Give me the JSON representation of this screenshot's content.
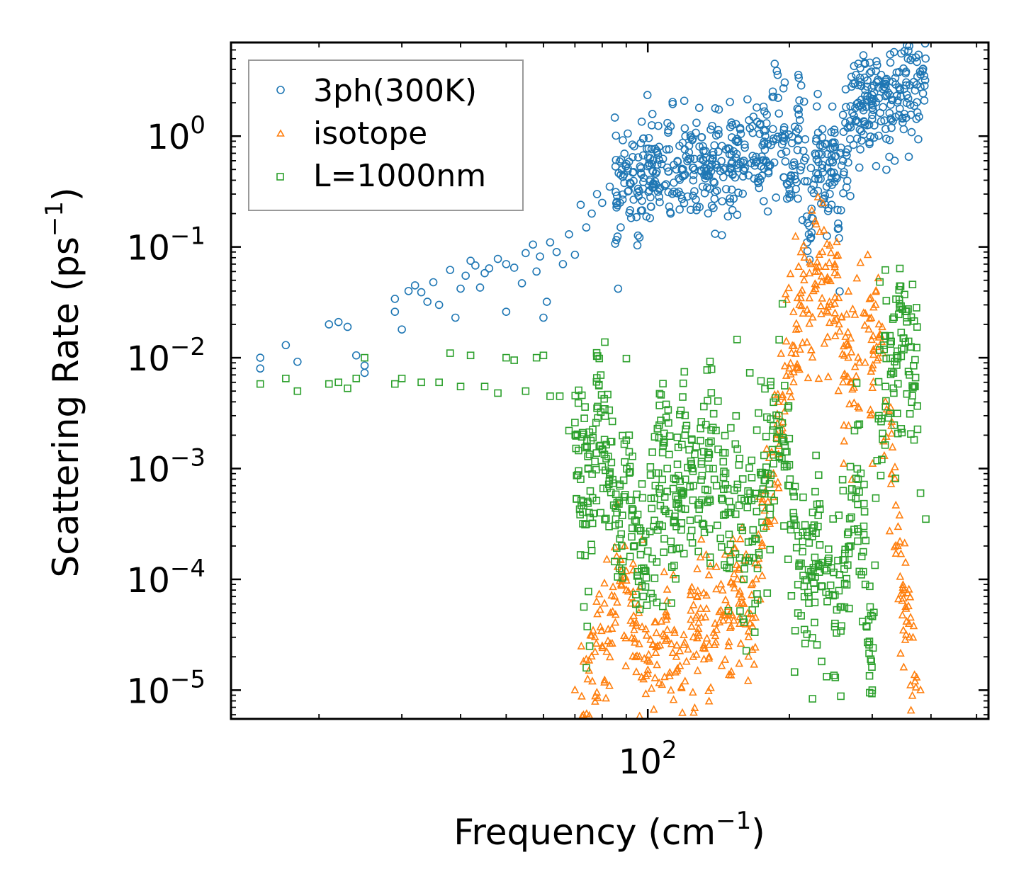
{
  "chart_data": {
    "type": "scatter",
    "title": "",
    "xscale": "log",
    "yscale": "log",
    "xlabel": {
      "base": "Frequency (cm",
      "sup": "−1",
      "tail": ")"
    },
    "ylabel": {
      "base": "Scattering Rate (ps",
      "sup": "−1",
      "tail": ")"
    },
    "xlim": [
      13,
      530
    ],
    "ylim": [
      5.5e-06,
      7
    ],
    "x_ticks": [
      {
        "value": 100,
        "base": "10",
        "exp": "2"
      }
    ],
    "y_ticks": [
      {
        "value": 1,
        "base": "10",
        "exp": "0"
      },
      {
        "value": 0.1,
        "base": "10",
        "exp": "−1"
      },
      {
        "value": 0.01,
        "base": "10",
        "exp": "−2"
      },
      {
        "value": 0.001,
        "base": "10",
        "exp": "−3"
      },
      {
        "value": 0.0001,
        "base": "10",
        "exp": "−4"
      },
      {
        "value": 1e-05,
        "base": "10",
        "exp": "−5"
      }
    ],
    "legend_position": "top-left",
    "series": [
      {
        "name": "3ph(300K)",
        "marker": "circle",
        "color": "#1f77b4",
        "points": [
          [
            15,
            0.01
          ],
          [
            15,
            0.008
          ],
          [
            17,
            0.013
          ],
          [
            18,
            0.0092
          ],
          [
            21,
            0.02
          ],
          [
            22,
            0.021
          ],
          [
            23,
            0.019
          ],
          [
            24,
            0.0105
          ],
          [
            25,
            0.0085
          ],
          [
            25,
            0.0073
          ],
          [
            29,
            0.026
          ],
          [
            29,
            0.034
          ],
          [
            30,
            0.018
          ],
          [
            31,
            0.04
          ],
          [
            32,
            0.045
          ],
          [
            33,
            0.039
          ],
          [
            34,
            0.032
          ],
          [
            35,
            0.048
          ],
          [
            36,
            0.03
          ],
          [
            38,
            0.062
          ],
          [
            39,
            0.023
          ],
          [
            40,
            0.042
          ],
          [
            41,
            0.055
          ],
          [
            42,
            0.075
          ],
          [
            43,
            0.068
          ],
          [
            44,
            0.043
          ],
          [
            45,
            0.058
          ],
          [
            46,
            0.064
          ],
          [
            48,
            0.078
          ],
          [
            50,
            0.026
          ],
          [
            50,
            0.07
          ],
          [
            52,
            0.065
          ],
          [
            54,
            0.047
          ],
          [
            55,
            0.088
          ],
          [
            57,
            0.105
          ],
          [
            58,
            0.06
          ],
          [
            59,
            0.082
          ],
          [
            60,
            0.023
          ],
          [
            61,
            0.032
          ],
          [
            62,
            0.11
          ],
          [
            64,
            0.09
          ],
          [
            66,
            0.07
          ],
          [
            68,
            0.13
          ],
          [
            70,
            0.085
          ],
          [
            72,
            0.24
          ],
          [
            74,
            0.15
          ],
          [
            76,
            0.2
          ],
          [
            78,
            0.3
          ],
          [
            80,
            0.25
          ],
          [
            83,
            0.35
          ],
          [
            86,
            0.29
          ],
          [
            89,
            0.45
          ],
          [
            92,
            0.37
          ],
          [
            95,
            0.31
          ],
          [
            98,
            0.42
          ],
          [
            101,
            0.39
          ],
          [
            104,
            0.46
          ],
          [
            107,
            0.56
          ],
          [
            110,
            0.52
          ],
          [
            115,
            0.5
          ],
          [
            120,
            0.45
          ],
          [
            125,
            0.52
          ],
          [
            130,
            0.48
          ],
          [
            135,
            0.44
          ],
          [
            140,
            0.55
          ],
          [
            145,
            0.5
          ],
          [
            150,
            0.52
          ],
          [
            160,
            0.6
          ],
          [
            170,
            0.65
          ],
          [
            180,
            0.85
          ],
          [
            185,
            0.95
          ],
          [
            190,
            1.6
          ],
          [
            195,
            1.2
          ],
          [
            200,
            0.3
          ],
          [
            205,
            0.55
          ],
          [
            210,
            2.1
          ],
          [
            215,
            0.6
          ],
          [
            220,
            0.13
          ],
          [
            228,
            0.9
          ],
          [
            235,
            0.55
          ],
          [
            240,
            0.35
          ],
          [
            250,
            0.8
          ],
          [
            255,
            0.12
          ],
          [
            260,
            0.6
          ],
          [
            270,
            1.2
          ],
          [
            280,
            2.0
          ],
          [
            290,
            2.6
          ],
          [
            300,
            1.8
          ],
          [
            310,
            2.2
          ],
          [
            320,
            2.3
          ],
          [
            340,
            2.1
          ],
          [
            360,
            2.9
          ],
          [
            380,
            3.6
          ]
        ],
        "noise": {
          "x_from": 85,
          "x_to": 390,
          "sigma": 0.25,
          "count": 700
        }
      },
      {
        "name": "isotope",
        "marker": "triangle",
        "color": "#ff7f0e",
        "points": [
          [
            70,
            1e-05
          ],
          [
            75,
            1.5e-05
          ],
          [
            80,
            2.5e-05
          ],
          [
            85,
            7e-05
          ],
          [
            88,
            0.00012
          ],
          [
            90,
            8e-05
          ],
          [
            93,
            4e-05
          ],
          [
            96,
            2e-05
          ],
          [
            100,
            1.4e-05
          ],
          [
            105,
            2.5e-05
          ],
          [
            110,
            3.5e-05
          ],
          [
            115,
            2e-05
          ],
          [
            120,
            1.2e-05
          ],
          [
            125,
            3e-05
          ],
          [
            130,
            4.5e-05
          ],
          [
            135,
            2e-05
          ],
          [
            140,
            3.5e-05
          ],
          [
            150,
            5e-05
          ],
          [
            155,
            0.0001
          ],
          [
            160,
            6e-05
          ],
          [
            165,
            4e-05
          ],
          [
            170,
            0.0001
          ],
          [
            175,
            0.0002
          ],
          [
            180,
            0.0005
          ],
          [
            185,
            0.0009
          ],
          [
            190,
            0.0016
          ],
          [
            195,
            0.004
          ],
          [
            200,
            0.008
          ],
          [
            210,
            0.03
          ],
          [
            215,
            0.05
          ],
          [
            220,
            0.025
          ],
          [
            225,
            0.04
          ],
          [
            230,
            0.06
          ],
          [
            235,
            0.09
          ],
          [
            240,
            0.05
          ],
          [
            245,
            0.03
          ],
          [
            250,
            0.035
          ],
          [
            255,
            0.02
          ],
          [
            260,
            0.006
          ],
          [
            270,
            0.006
          ],
          [
            280,
            0.01
          ],
          [
            290,
            0.025
          ],
          [
            295,
            0.018
          ],
          [
            300,
            0.008
          ],
          [
            305,
            0.03
          ],
          [
            310,
            0.02
          ],
          [
            320,
            0.004
          ],
          [
            330,
            0.0009
          ],
          [
            340,
            0.0002
          ],
          [
            350,
            8e-05
          ],
          [
            360,
            3e-05
          ],
          [
            370,
            1.2e-05
          ],
          [
            380,
            1e-05
          ]
        ],
        "noise": {
          "x_from": 72,
          "x_to": 375,
          "sigma": 0.35,
          "count": 550
        }
      },
      {
        "name": "L=1000nm",
        "marker": "square",
        "color": "#2ca02c",
        "points": [
          [
            15,
            0.0058
          ],
          [
            17,
            0.0065
          ],
          [
            18,
            0.005
          ],
          [
            21,
            0.0058
          ],
          [
            22,
            0.006
          ],
          [
            23,
            0.0053
          ],
          [
            24,
            0.0065
          ],
          [
            25,
            0.01
          ],
          [
            29,
            0.0058
          ],
          [
            30,
            0.0065
          ],
          [
            33,
            0.006
          ],
          [
            36,
            0.006
          ],
          [
            38,
            0.011
          ],
          [
            40,
            0.0055
          ],
          [
            42,
            0.0105
          ],
          [
            45,
            0.0055
          ],
          [
            48,
            0.0048
          ],
          [
            50,
            0.01
          ],
          [
            52,
            0.0095
          ],
          [
            55,
            0.005
          ],
          [
            58,
            0.01
          ],
          [
            60,
            0.0105
          ],
          [
            62,
            0.0045
          ],
          [
            65,
            0.0045
          ],
          [
            68,
            0.0022
          ],
          [
            70,
            0.0026
          ],
          [
            72,
            0.0008
          ],
          [
            75,
            0.0004
          ],
          [
            78,
            0.0035
          ],
          [
            80,
            0.0015
          ],
          [
            83,
            0.0009
          ],
          [
            86,
            0.0004
          ],
          [
            88,
            0.0002
          ],
          [
            90,
            0.0018
          ],
          [
            93,
            0.00042
          ],
          [
            96,
            0.00029
          ],
          [
            100,
            0.00018
          ],
          [
            103,
            0.0003
          ],
          [
            106,
            0.0006
          ],
          [
            110,
            0.001
          ],
          [
            112,
            0.00022
          ],
          [
            115,
            0.0003
          ],
          [
            118,
            0.0006
          ],
          [
            120,
            0.002
          ],
          [
            125,
            0.0007
          ],
          [
            128,
            0.00035
          ],
          [
            130,
            0.0011
          ],
          [
            135,
            0.001
          ],
          [
            140,
            0.0007
          ],
          [
            145,
            0.00065
          ],
          [
            150,
            0.0004
          ],
          [
            155,
            0.0015
          ],
          [
            160,
            0.0001
          ],
          [
            165,
            0.0006
          ],
          [
            170,
            0.00023
          ],
          [
            175,
            0.0006
          ],
          [
            180,
            0.0009
          ],
          [
            190,
            0.003
          ],
          [
            200,
            0.0007
          ],
          [
            210,
            0.00014
          ],
          [
            220,
            7e-05
          ],
          [
            230,
            0.0003
          ],
          [
            240,
            0.00012
          ],
          [
            250,
            4e-05
          ],
          [
            260,
            0.00015
          ],
          [
            270,
            0.0002
          ],
          [
            280,
            0.0008
          ],
          [
            290,
            9e-05
          ],
          [
            300,
            1e-05
          ],
          [
            310,
            0.003
          ],
          [
            320,
            0.0055
          ],
          [
            330,
            0.0075
          ],
          [
            340,
            0.01
          ],
          [
            350,
            0.015
          ],
          [
            360,
            0.007
          ],
          [
            370,
            0.0055
          ],
          [
            380,
            0.0006
          ],
          [
            390,
            0.00035
          ]
        ],
        "noise": {
          "x_from": 70,
          "x_to": 375,
          "sigma": 0.45,
          "count": 750
        }
      }
    ]
  }
}
